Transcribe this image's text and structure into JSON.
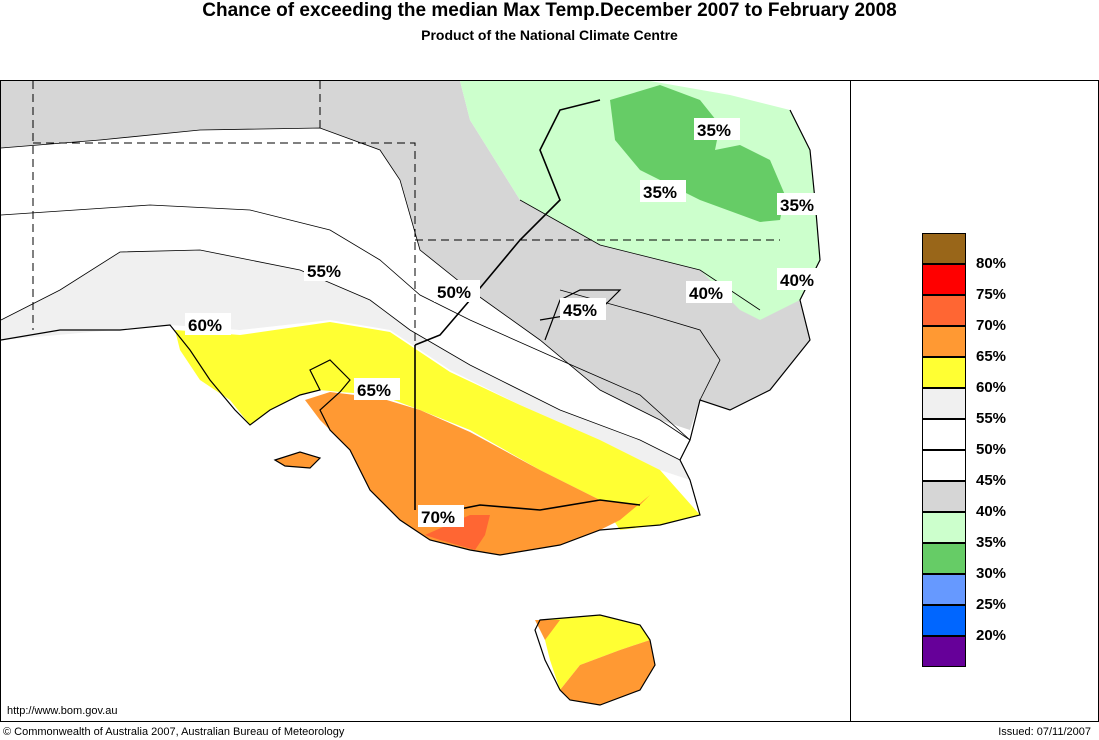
{
  "header": {
    "title": "Chance of exceeding the median Max Temp.December 2007 to February 2008",
    "subtitle": "Product of the National Climate Centre"
  },
  "legend": [
    {
      "label": "80%",
      "color": "#996619"
    },
    {
      "label": "75%",
      "color": "#ff0000"
    },
    {
      "label": "70%",
      "color": "#ff6633"
    },
    {
      "label": "65%",
      "color": "#ff9933"
    },
    {
      "label": "60%",
      "color": "#ffff33"
    },
    {
      "label": "55%",
      "color": "#f0f0f0"
    },
    {
      "label": "50%",
      "color": "#ffffff"
    },
    {
      "label": "45%",
      "color": "#ffffff"
    },
    {
      "label": "40%",
      "color": "#d6d6d6"
    },
    {
      "label": "35%",
      "color": "#ccffcc"
    },
    {
      "label": "30%",
      "color": "#66cc66"
    },
    {
      "label": "25%",
      "color": "#6699ff"
    },
    {
      "label": "20%",
      "color": "#0066ff"
    },
    {
      "label": "",
      "color": "#660099"
    }
  ],
  "contour_labels": {
    "l35a": "35%",
    "l35b": "35%",
    "l35c": "35%",
    "l40a": "40%",
    "l40b": "40%",
    "l45": "45%",
    "l50": "50%",
    "l55": "55%",
    "l60": "60%",
    "l65": "65%",
    "l70": "70%"
  },
  "footer": {
    "url": "http://www.bom.gov.au",
    "copyright": "© Commonwealth of Australia 2007, Australian Bureau of Meteorology",
    "issued": "Issued: 07/11/2007"
  }
}
